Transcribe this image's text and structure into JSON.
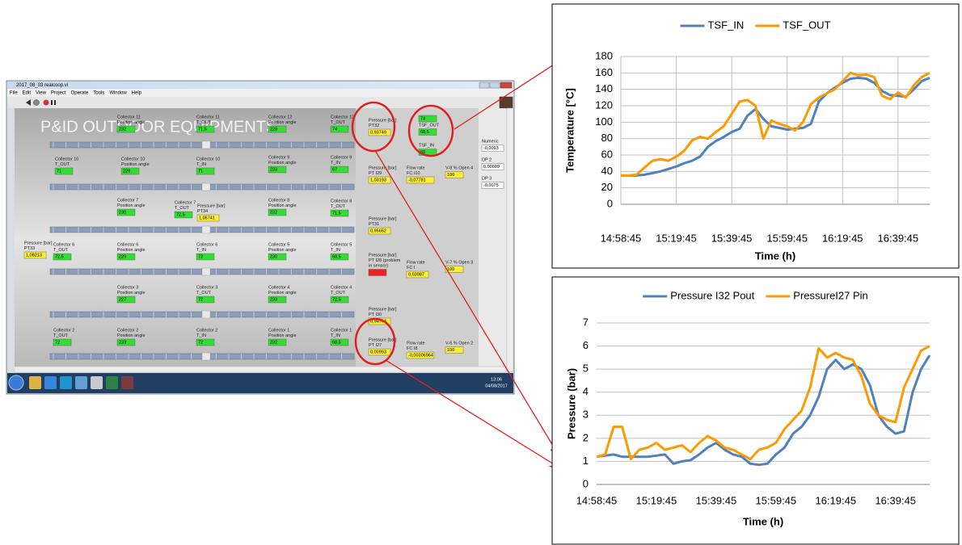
{
  "screenshot": {
    "window_title": "2017_08_03 realcoop.vi",
    "menu": [
      "File",
      "Edit",
      "View",
      "Project",
      "Operate",
      "Tools",
      "Window",
      "Help"
    ],
    "heading": "P&ID OUTDOOR EQUIPMENTS",
    "widgets": [
      {
        "label": [
          "Collector 11",
          "Position angle"
        ],
        "value": "232",
        "color": "#33dd33"
      },
      {
        "label": [
          "Collector 11",
          "T_OUT"
        ],
        "value": "71,5",
        "color": "#33dd33"
      },
      {
        "label": [
          "Collector 12",
          "Position angle"
        ],
        "value": "228",
        "color": "#33dd33"
      },
      {
        "label": [
          "Collector 13",
          "T_OUT"
        ],
        "value": "74",
        "color": "#33dd33"
      },
      {
        "label": [
          "Pressure [bar]",
          "PT32"
        ],
        "value": "0,93749",
        "color": "#ffee33"
      },
      {
        "label": [],
        "value": "74",
        "color": "#33dd33"
      },
      {
        "label": [
          "TSF_OUT"
        ],
        "value": "68,5",
        "color": "#33dd33"
      },
      {
        "label": [
          "TSF_IN"
        ],
        "value": "69",
        "color": "#33dd33"
      },
      {
        "label": [
          "Collector 10",
          "T_OUT"
        ],
        "value": "71",
        "color": "#33dd33"
      },
      {
        "label": [
          "Collector 10",
          "Position angle"
        ],
        "value": "229",
        "color": "#33dd33"
      },
      {
        "label": [
          "Collector 10",
          "T_IN"
        ],
        "value": "71",
        "color": "#33dd33"
      },
      {
        "label": [
          "Collector 9",
          "Position angle"
        ],
        "value": "233",
        "color": "#33dd33"
      },
      {
        "label": [
          "Collector 9",
          "T_IN"
        ],
        "value": "67",
        "color": "#33dd33"
      },
      {
        "label": [
          "Pressure [bar]",
          "PT I29"
        ],
        "value": "1,03193",
        "color": "#ffee33"
      },
      {
        "label": [
          "Flow rate",
          "FC I10"
        ],
        "value": "-0,07781",
        "color": "#ffee33"
      },
      {
        "label": [
          "V-8 % Open 4"
        ],
        "value": "100",
        "color": "#ffee33"
      },
      {
        "label": [
          "Collector 7",
          "Position angle"
        ],
        "value": "230",
        "color": "#33dd33"
      },
      {
        "label": [
          "Collector 7",
          "T_OUT"
        ],
        "value": "72,5",
        "color": "#33dd33"
      },
      {
        "label": [
          "Pressure [bar]",
          "PT34"
        ],
        "value": "1,05741",
        "color": "#ffee33"
      },
      {
        "label": [
          "Collector 8",
          "Position angle"
        ],
        "value": "232",
        "color": "#33dd33"
      },
      {
        "label": [
          "Collector 8",
          "T_OUT"
        ],
        "value": "71,5",
        "color": "#33dd33"
      },
      {
        "label": [
          "Pressure [bar]",
          "PT31"
        ],
        "value": "0,95652",
        "color": "#ffee33"
      },
      {
        "label": [
          "Pressure [bar]",
          "PT33"
        ],
        "value": "1,08213",
        "color": "#ffee33"
      },
      {
        "label": [
          "Collector 6",
          "T_OUT"
        ],
        "value": "72,5",
        "color": "#33dd33"
      },
      {
        "label": [
          "Collector 6",
          "Position angle"
        ],
        "value": "229",
        "color": "#33dd33"
      },
      {
        "label": [
          "Collector 6",
          "T_IN"
        ],
        "value": "72",
        "color": "#33dd33"
      },
      {
        "label": [
          "Collector 5",
          "Position angle"
        ],
        "value": "230",
        "color": "#33dd33"
      },
      {
        "label": [
          "Collector 5",
          "T_IN"
        ],
        "value": "68,5",
        "color": "#33dd33"
      },
      {
        "label": [
          "Pressure [bar]",
          "PT I28 (problem",
          "in sensor)"
        ],
        "color": "#ee2222"
      },
      {
        "label": [
          "Flow rate",
          "FC I"
        ],
        "value": "0,03987",
        "color": "#ffee33"
      },
      {
        "label": [
          "V-7 % Open 3"
        ],
        "value": "100",
        "color": "#ffee33"
      },
      {
        "label": [
          "Collector 3",
          "Position angle"
        ],
        "value": "227",
        "color": "#33dd33"
      },
      {
        "label": [
          "Collector 3",
          "T_OUT"
        ],
        "value": "72",
        "color": "#33dd33"
      },
      {
        "label": [
          "Collector 4",
          "Position angle"
        ],
        "value": "233",
        "color": "#33dd33"
      },
      {
        "label": [
          "Collector 4",
          "T_OUT"
        ],
        "value": "72,5",
        "color": "#33dd33"
      },
      {
        "label": [
          "Pressure [bar]",
          "PT I30"
        ],
        "value": "0,94744",
        "color": "#ffee33"
      },
      {
        "label": [
          "Collector 2",
          "T_OUT"
        ],
        "value": "72",
        "color": "#33dd33"
      },
      {
        "label": [
          "Collector 2",
          "Position angle"
        ],
        "value": "233",
        "color": "#33dd33"
      },
      {
        "label": [
          "Collector 2",
          "T_IN"
        ],
        "value": "72",
        "color": "#33dd33"
      },
      {
        "label": [
          "Collector 1",
          "Position angle"
        ],
        "value": "232",
        "color": "#33dd33"
      },
      {
        "label": [
          "Collector 1",
          "T_IN"
        ],
        "value": "68,5",
        "color": "#33dd33"
      },
      {
        "label": [
          "Pressure [bar]",
          "PT I27"
        ],
        "value": "0,00993",
        "color": "#ffee33"
      },
      {
        "label": [
          "Flow rate",
          "FC I8"
        ],
        "value": "-0,00306964",
        "color": "#ffee33"
      },
      {
        "label": [
          "V-6 % Open 2"
        ],
        "value": "100",
        "color": "#ffee33"
      },
      {
        "label": [
          "Numeric"
        ],
        "value": "-0,0093",
        "color": "#ffffff"
      },
      {
        "label": [
          "DP 2"
        ],
        "value": "0,00609",
        "color": "#ffffff"
      },
      {
        "label": [
          "DP 3"
        ],
        "value": "-0,0075",
        "color": "#ffffff"
      }
    ],
    "clock": {
      "time": "13:06",
      "date": "04/08/2017"
    }
  },
  "chart_data": [
    {
      "type": "line",
      "y_label": "Temperature [°C]",
      "x_label": "Time (h)",
      "legend": "top",
      "grid": true,
      "xgrid": true,
      "categories": [
        "14:58:45",
        null,
        null,
        null,
        null,
        null,
        null,
        "15:19:45",
        null,
        null,
        null,
        null,
        null,
        null,
        "15:39:45",
        null,
        null,
        null,
        null,
        null,
        null,
        "15:59:45",
        null,
        null,
        null,
        null,
        null,
        null,
        "16:19:45",
        null,
        null,
        null,
        null,
        null,
        null,
        "16:39:45",
        null,
        null,
        null,
        null
      ],
      "ylim": [
        0,
        180
      ],
      "yticks": [
        0,
        20,
        40,
        60,
        80,
        100,
        120,
        140,
        160,
        180
      ],
      "series": [
        {
          "name": "TSF_IN",
          "color": "#4f81bd",
          "values": [
            35,
            35,
            35,
            36,
            38,
            40,
            43,
            46,
            50,
            53,
            58,
            70,
            77,
            82,
            88,
            92,
            108,
            116,
            104,
            95,
            93,
            91,
            92,
            93,
            98,
            125,
            135,
            142,
            148,
            153,
            154,
            153,
            148,
            138,
            133,
            132,
            131,
            140,
            150,
            154
          ]
        },
        {
          "name": "TSF_OUT",
          "color": "#ff9900",
          "values": [
            35,
            35,
            36,
            45,
            53,
            55,
            53,
            58,
            65,
            78,
            82,
            80,
            88,
            95,
            110,
            125,
            127,
            120,
            80,
            102,
            98,
            95,
            90,
            100,
            122,
            130,
            135,
            140,
            150,
            160,
            157,
            158,
            155,
            132,
            128,
            136,
            130,
            145,
            155,
            160
          ]
        }
      ]
    },
    {
      "type": "line",
      "y_label": "Pressure (bar)",
      "x_label": "Time (h)",
      "legend": "top",
      "grid": true,
      "xgrid": false,
      "categories": [
        "14:58:45",
        null,
        null,
        null,
        null,
        null,
        null,
        "15:19:45",
        null,
        null,
        null,
        null,
        null,
        null,
        "15:39:45",
        null,
        null,
        null,
        null,
        null,
        null,
        "15:59:45",
        null,
        null,
        null,
        null,
        null,
        null,
        "16:19:45",
        null,
        null,
        null,
        null,
        null,
        null,
        "16:39:45",
        null,
        null,
        null,
        null
      ],
      "ylim": [
        0,
        7
      ],
      "yticks": [
        0,
        1,
        2,
        3,
        4,
        5,
        6,
        7
      ],
      "series": [
        {
          "name": "Pressure I32 Pout",
          "color": "#4f81bd",
          "values": [
            1.2,
            1.25,
            1.3,
            1.2,
            1.2,
            1.2,
            1.2,
            1.25,
            1.3,
            0.9,
            1.0,
            1.05,
            1.3,
            1.6,
            1.8,
            1.5,
            1.3,
            1.2,
            0.9,
            0.85,
            0.9,
            1.3,
            1.6,
            2.2,
            2.5,
            3.0,
            3.8,
            5.0,
            5.4,
            5.0,
            5.2,
            5.0,
            4.3,
            3.0,
            2.5,
            2.2,
            2.3,
            4.0,
            5.0,
            5.6
          ]
        },
        {
          "name": "PressureI27 Pin",
          "color": "#ff9900",
          "values": [
            1.2,
            1.3,
            2.5,
            2.5,
            1.1,
            1.5,
            1.6,
            1.8,
            1.5,
            1.6,
            1.7,
            1.4,
            1.8,
            2.1,
            1.9,
            1.6,
            1.5,
            1.3,
            1.1,
            1.5,
            1.6,
            1.8,
            2.4,
            2.8,
            3.2,
            4.2,
            5.9,
            5.5,
            5.7,
            5.5,
            5.4,
            4.7,
            3.5,
            3.0,
            2.8,
            2.7,
            4.2,
            5.0,
            5.8,
            6.0
          ]
        }
      ]
    }
  ]
}
